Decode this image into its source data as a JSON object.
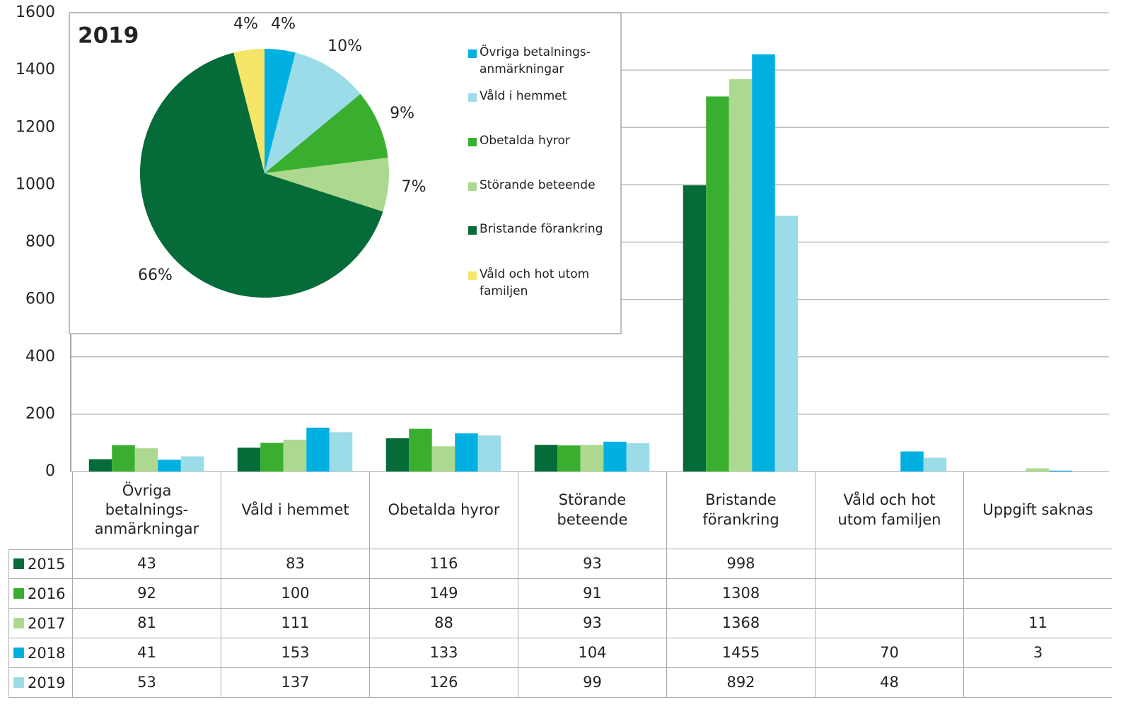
{
  "chart_data": [
    {
      "type": "bar",
      "categories": [
        "Övriga betalnings-anmärkningar",
        "Våld i hemmet",
        "Obetalda hyror",
        "Störande beteende",
        "Bristande förankring",
        "Våld och hot utom familjen",
        "Uppgift saknas"
      ],
      "series": [
        {
          "name": "2015",
          "color": "#056b38",
          "values": [
            43,
            83,
            116,
            93,
            998,
            null,
            null
          ]
        },
        {
          "name": "2016",
          "color": "#3aaf2f",
          "values": [
            92,
            100,
            149,
            91,
            1308,
            null,
            null
          ]
        },
        {
          "name": "2017",
          "color": "#acd98f",
          "values": [
            81,
            111,
            88,
            93,
            1368,
            null,
            11
          ]
        },
        {
          "name": "2018",
          "color": "#00b0e0",
          "values": [
            41,
            153,
            133,
            104,
            1455,
            70,
            3
          ]
        },
        {
          "name": "2019",
          "color": "#9cdbe8",
          "values": [
            53,
            137,
            126,
            99,
            892,
            48,
            null
          ]
        }
      ],
      "ylim": [
        0,
        1600
      ],
      "yticks": [
        0,
        200,
        400,
        600,
        800,
        1000,
        1200,
        1400,
        1600
      ],
      "grid": true
    },
    {
      "type": "pie",
      "title": "2019",
      "categories": [
        "Övriga betalnings-anmärkningar",
        "Våld i hemmet",
        "Obetalda hyror",
        "Störande beteende",
        "Bristande förankring",
        "Våld och hot utom familjen"
      ],
      "values": [
        4,
        10,
        9,
        7,
        66,
        4
      ],
      "value_labels": [
        "4%",
        "10%",
        "9%",
        "7%",
        "66%",
        "4%"
      ],
      "colors": [
        "#00b0e0",
        "#9cdbe8",
        "#3aaf2f",
        "#acd98f",
        "#056b38",
        "#f5e66a"
      ]
    }
  ]
}
